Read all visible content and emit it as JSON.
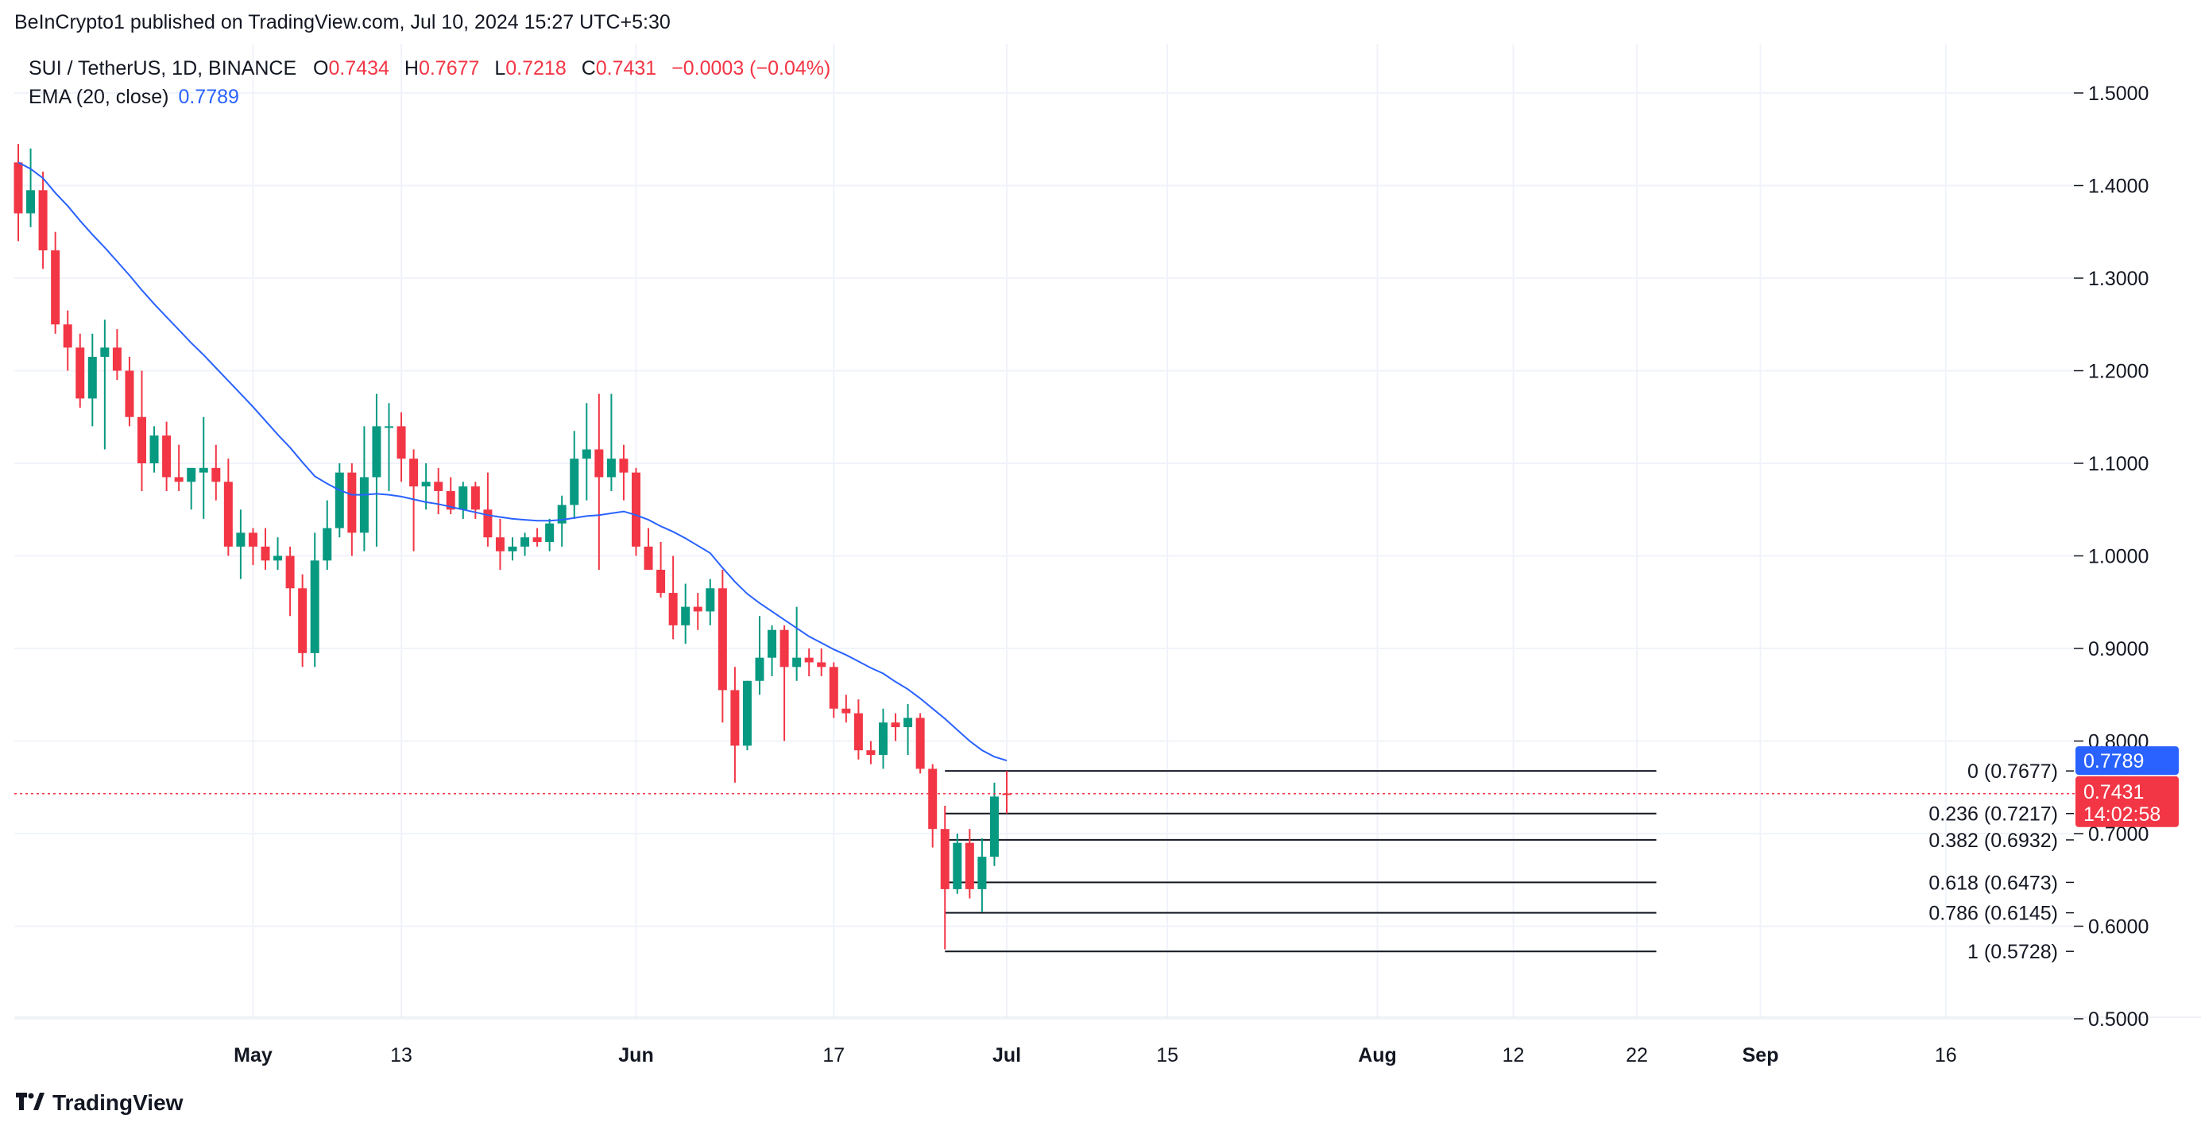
{
  "header": {
    "published": "BeInCrypto1 published on TradingView.com, Jul 10, 2024 15:27 UTC+5:30"
  },
  "legend": {
    "symbol": "SUI / TetherUS, 1D, BINANCE",
    "o_label": "O",
    "o_value": "0.7434",
    "h_label": "H",
    "h_value": "0.7677",
    "l_label": "L",
    "l_value": "0.7218",
    "c_label": "C",
    "c_value": "0.7431",
    "change": "−0.0003 (−0.04%)",
    "ema_label": "EMA (20, close)",
    "ema_value": "0.7789"
  },
  "footer": {
    "brand": "TradingView",
    "logo_icon": "tradingview-logo-icon"
  },
  "colors": {
    "up": "#089981",
    "down": "#f23645",
    "ema": "#2962ff",
    "grid": "#f0f3fa",
    "fib": "#131722"
  },
  "chart_data": {
    "type": "candlestick",
    "symbol": "SUI/USDT",
    "interval": "1D",
    "ylim": [
      0.47,
      1.55
    ],
    "x_ticks": [
      {
        "label": "May",
        "day": 19,
        "bold": true
      },
      {
        "label": "13",
        "day": 31,
        "bold": false
      },
      {
        "label": "Jun",
        "day": 50,
        "bold": true
      },
      {
        "label": "17",
        "day": 66,
        "bold": false
      },
      {
        "label": "Jul",
        "day": 80,
        "bold": true
      },
      {
        "label": "15",
        "day": 93,
        "bold": false
      },
      {
        "label": "Aug",
        "day": 110,
        "bold": true
      },
      {
        "label": "12",
        "day": 121,
        "bold": false
      },
      {
        "label": "22",
        "day": 131,
        "bold": false
      },
      {
        "label": "Sep",
        "day": 141,
        "bold": true
      },
      {
        "label": "16",
        "day": 156,
        "bold": false
      }
    ],
    "y_ticks": [
      "0.5000",
      "0.6000",
      "0.7000",
      "0.8000",
      "0.9000",
      "1.0000",
      "1.1000",
      "1.2000",
      "1.3000",
      "1.4000",
      "1.5000"
    ],
    "candles": [
      [
        1.425,
        1.445,
        1.34,
        1.37
      ],
      [
        1.37,
        1.44,
        1.355,
        1.395
      ],
      [
        1.395,
        1.415,
        1.31,
        1.33
      ],
      [
        1.33,
        1.35,
        1.24,
        1.25
      ],
      [
        1.25,
        1.265,
        1.2,
        1.225
      ],
      [
        1.225,
        1.24,
        1.16,
        1.17
      ],
      [
        1.17,
        1.24,
        1.14,
        1.215
      ],
      [
        1.215,
        1.255,
        1.115,
        1.225
      ],
      [
        1.225,
        1.245,
        1.19,
        1.2
      ],
      [
        1.2,
        1.215,
        1.14,
        1.15
      ],
      [
        1.15,
        1.2,
        1.07,
        1.1
      ],
      [
        1.1,
        1.14,
        1.09,
        1.13
      ],
      [
        1.13,
        1.145,
        1.07,
        1.085
      ],
      [
        1.085,
        1.12,
        1.07,
        1.08
      ],
      [
        1.08,
        1.09,
        1.05,
        1.095
      ],
      [
        1.09,
        1.15,
        1.04,
        1.095
      ],
      [
        1.095,
        1.12,
        1.06,
        1.08
      ],
      [
        1.08,
        1.105,
        1.0,
        1.01
      ],
      [
        1.01,
        1.05,
        0.975,
        1.025
      ],
      [
        1.025,
        1.03,
        0.99,
        1.01
      ],
      [
        1.01,
        1.03,
        0.985,
        0.995
      ],
      [
        0.995,
        1.02,
        0.985,
        1.0
      ],
      [
        1.0,
        1.01,
        0.935,
        0.965
      ],
      [
        0.965,
        0.98,
        0.88,
        0.895
      ],
      [
        0.895,
        1.025,
        0.88,
        0.995
      ],
      [
        0.995,
        1.06,
        0.985,
        1.03
      ],
      [
        1.03,
        1.1,
        1.02,
        1.09
      ],
      [
        1.09,
        1.1,
        1.0,
        1.025
      ],
      [
        1.025,
        1.14,
        1.005,
        1.085
      ],
      [
        1.085,
        1.175,
        1.01,
        1.14
      ],
      [
        1.14,
        1.165,
        1.07,
        1.14
      ],
      [
        1.14,
        1.155,
        1.08,
        1.105
      ],
      [
        1.105,
        1.115,
        1.005,
        1.075
      ],
      [
        1.075,
        1.1,
        1.05,
        1.08
      ],
      [
        1.08,
        1.095,
        1.045,
        1.07
      ],
      [
        1.07,
        1.085,
        1.045,
        1.05
      ],
      [
        1.05,
        1.08,
        1.04,
        1.075
      ],
      [
        1.075,
        1.08,
        1.04,
        1.05
      ],
      [
        1.05,
        1.09,
        1.01,
        1.02
      ],
      [
        1.02,
        1.04,
        0.985,
        1.005
      ],
      [
        1.005,
        1.02,
        0.995,
        1.01
      ],
      [
        1.01,
        1.025,
        1.0,
        1.02
      ],
      [
        1.02,
        1.03,
        1.01,
        1.015
      ],
      [
        1.015,
        1.04,
        1.005,
        1.035
      ],
      [
        1.035,
        1.065,
        1.01,
        1.055
      ],
      [
        1.055,
        1.135,
        1.04,
        1.105
      ],
      [
        1.105,
        1.165,
        1.06,
        1.115
      ],
      [
        1.115,
        1.175,
        0.985,
        1.085
      ],
      [
        1.085,
        1.175,
        1.07,
        1.105
      ],
      [
        1.105,
        1.12,
        1.06,
        1.09
      ],
      [
        1.09,
        1.095,
        1.0,
        1.01
      ],
      [
        1.01,
        1.03,
        0.985,
        0.985
      ],
      [
        0.985,
        1.015,
        0.955,
        0.96
      ],
      [
        0.96,
        1.0,
        0.91,
        0.925
      ],
      [
        0.925,
        0.97,
        0.905,
        0.945
      ],
      [
        0.945,
        0.96,
        0.92,
        0.94
      ],
      [
        0.94,
        0.975,
        0.925,
        0.965
      ],
      [
        0.965,
        0.985,
        0.82,
        0.855
      ],
      [
        0.855,
        0.88,
        0.755,
        0.795
      ],
      [
        0.795,
        0.865,
        0.79,
        0.865
      ],
      [
        0.865,
        0.935,
        0.85,
        0.89
      ],
      [
        0.89,
        0.925,
        0.87,
        0.92
      ],
      [
        0.92,
        0.925,
        0.8,
        0.88
      ],
      [
        0.88,
        0.945,
        0.865,
        0.89
      ],
      [
        0.89,
        0.9,
        0.87,
        0.885
      ],
      [
        0.885,
        0.9,
        0.87,
        0.88
      ],
      [
        0.88,
        0.885,
        0.825,
        0.835
      ],
      [
        0.835,
        0.85,
        0.82,
        0.83
      ],
      [
        0.83,
        0.845,
        0.78,
        0.79
      ],
      [
        0.79,
        0.8,
        0.775,
        0.785
      ],
      [
        0.785,
        0.835,
        0.77,
        0.82
      ],
      [
        0.82,
        0.83,
        0.8,
        0.815
      ],
      [
        0.815,
        0.84,
        0.785,
        0.825
      ],
      [
        0.825,
        0.83,
        0.765,
        0.77
      ],
      [
        0.77,
        0.775,
        0.685,
        0.705
      ],
      [
        0.705,
        0.73,
        0.575,
        0.64
      ],
      [
        0.64,
        0.7,
        0.635,
        0.69
      ],
      [
        0.69,
        0.705,
        0.63,
        0.64
      ],
      [
        0.64,
        0.695,
        0.615,
        0.675
      ],
      [
        0.675,
        0.755,
        0.665,
        0.74
      ],
      [
        0.7434,
        0.7677,
        0.7218,
        0.7431
      ]
    ],
    "ema20": [
      1.425,
      1.418,
      1.408,
      1.392,
      1.378,
      1.362,
      1.347,
      1.333,
      1.318,
      1.303,
      1.287,
      1.272,
      1.258,
      1.244,
      1.23,
      1.217,
      1.203,
      1.189,
      1.175,
      1.161,
      1.146,
      1.131,
      1.117,
      1.101,
      1.086,
      1.078,
      1.071,
      1.066,
      1.066,
      1.067,
      1.066,
      1.064,
      1.061,
      1.058,
      1.056,
      1.053,
      1.05,
      1.047,
      1.044,
      1.042,
      1.04,
      1.039,
      1.038,
      1.038,
      1.039,
      1.041,
      1.043,
      1.044,
      1.046,
      1.048,
      1.044,
      1.039,
      1.032,
      1.026,
      1.019,
      1.011,
      1.003,
      0.987,
      0.972,
      0.959,
      0.949,
      0.94,
      0.931,
      0.922,
      0.913,
      0.906,
      0.899,
      0.893,
      0.886,
      0.879,
      0.873,
      0.864,
      0.856,
      0.846,
      0.835,
      0.824,
      0.812,
      0.8,
      0.79,
      0.783,
      0.7789
    ],
    "fibonacci": [
      {
        "label": "0 (0.7677)",
        "value": 0.7677
      },
      {
        "label": "0.236 (0.7217)",
        "value": 0.7217
      },
      {
        "label": "0.382 (0.6932)",
        "value": 0.6932
      },
      {
        "label": "0.618 (0.6473)",
        "value": 0.6473
      },
      {
        "label": "0.786 (0.6145)",
        "value": 0.6145
      },
      {
        "label": "1 (0.5728)",
        "value": 0.5728
      }
    ],
    "fib_start_day": 75,
    "fib_end_day": 130,
    "last_price": {
      "value": 0.7431,
      "label": "0.7431",
      "countdown": "14:02:58"
    },
    "ema_last": {
      "value": 0.7789,
      "label": "0.7789"
    }
  }
}
